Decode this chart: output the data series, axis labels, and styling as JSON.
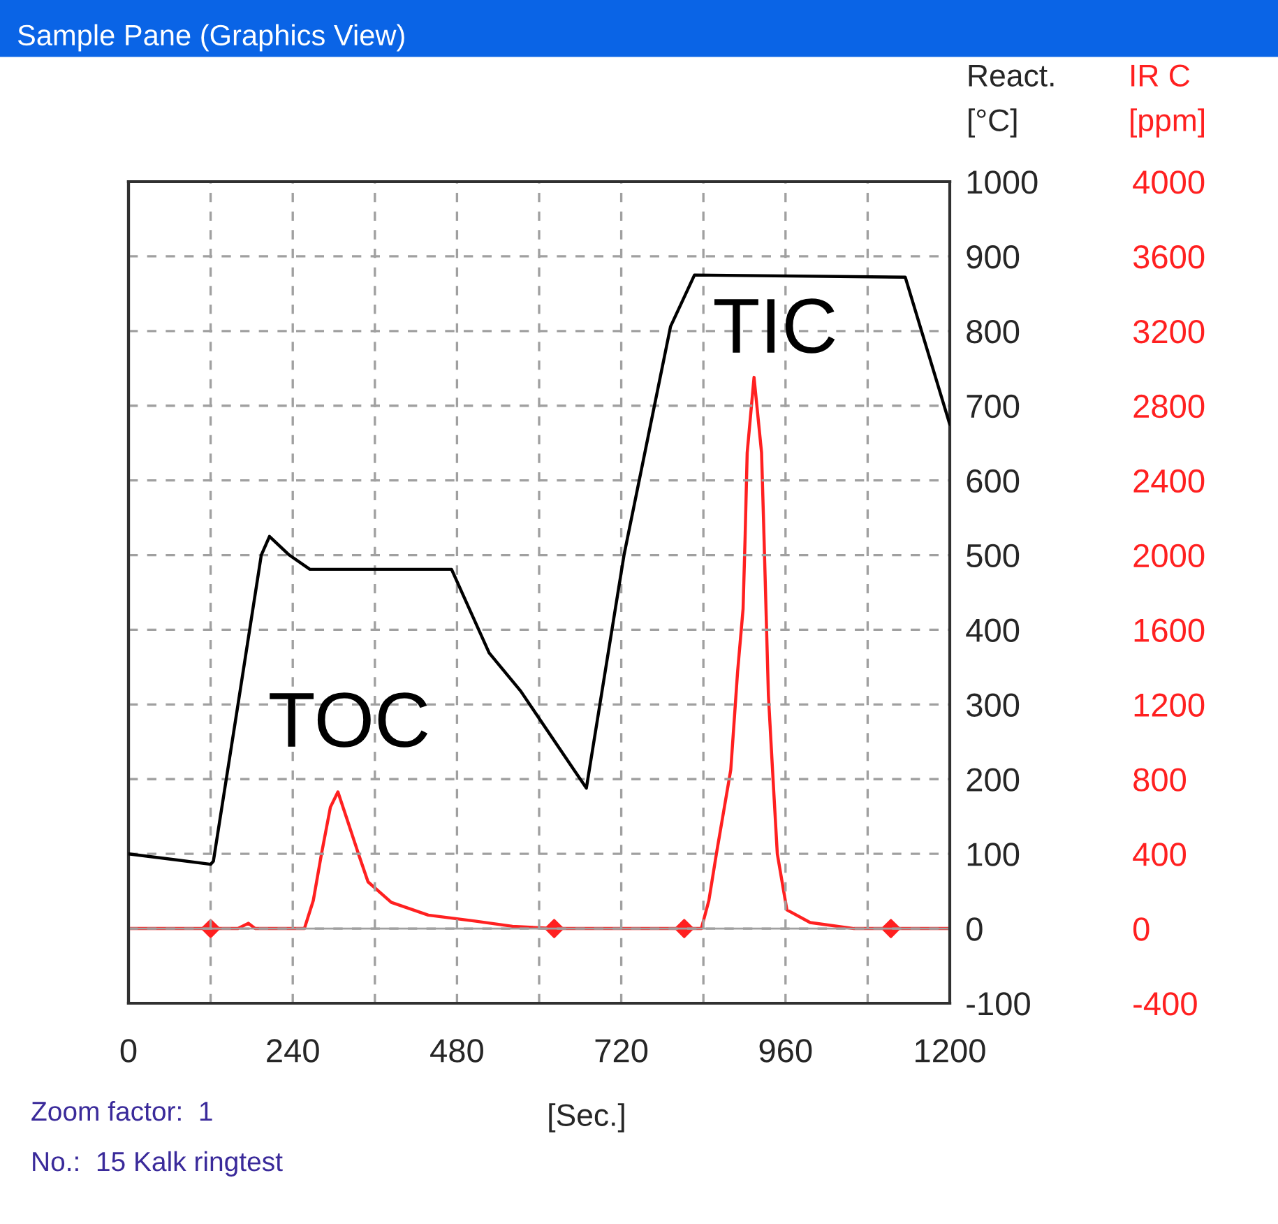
{
  "chart_data": {
    "type": "line",
    "title": "Sample Pane (Graphics View)",
    "xlabel": "[Sec.]",
    "ylabel": "React.\n[°C]",
    "y2label": "IR C\n[ppm]",
    "xlim": [
      0,
      1200
    ],
    "xticks": [
      0,
      {
        "value": 120,
        "label": null
      },
      240,
      {
        "value": 360,
        "label": null
      },
      480,
      {
        "value": 600,
        "label": null
      },
      720,
      {
        "value": 840,
        "label": null
      },
      960,
      {
        "value": 1080,
        "label": null
      },
      1200
    ],
    "ylim": [
      -100,
      1000
    ],
    "yticks": [
      -100,
      0,
      100,
      200,
      300,
      400,
      500,
      600,
      700,
      800,
      900,
      1000
    ],
    "y2lim": [
      -400,
      4000
    ],
    "y2ticks": [
      -400,
      0,
      400,
      800,
      1200,
      1600,
      2000,
      2400,
      2800,
      3200,
      3600,
      4000
    ],
    "grid": true,
    "legend": false,
    "line_style": "solid",
    "ref_lines": [
      {
        "axis": "y",
        "value": 0,
        "color": "#a0a0a0"
      }
    ],
    "series": [
      {
        "color": "#000000",
        "x": [
          0,
          120,
          124,
          160,
          194,
          206,
          235,
          265,
          472,
          527,
          573,
          649,
          669,
          724,
          792,
          827,
          1135,
          1200
        ],
        "values": [
          100,
          86,
          90,
          300,
          500,
          525,
          500,
          481,
          481,
          369,
          318,
          215,
          188,
          500,
          806,
          875,
          872,
          675
        ]
      },
      {
        "color": "#ff2020",
        "axis": "y2",
        "x": [
          0,
          160,
          175,
          185,
          257,
          270,
          282,
          295,
          306,
          318,
          336,
          350,
          384,
          438,
          506,
          561,
          620,
          837,
          848,
          859,
          880,
          890,
          898,
          901,
          904,
          914,
          925,
          928,
          935,
          941,
          948,
          962,
          996,
          1060,
          1200
        ],
        "values": [
          0,
          0,
          28,
          0,
          0,
          150,
          400,
          650,
          732,
          600,
          400,
          250,
          140,
          72,
          40,
          12,
          0,
          0,
          150,
          400,
          850,
          1376,
          1712,
          2100,
          2548,
          2952,
          2548,
          2172,
          1250,
          850,
          400,
          100,
          32,
          0,
          0
        ]
      },
      {
        "type": "scatter",
        "color": "#ff2020",
        "axis": "y2",
        "marker": "diamond",
        "x": [
          120,
          622,
          812,
          1114
        ],
        "values": [
          0,
          0,
          0,
          0
        ]
      }
    ],
    "annotations": [
      "TOC",
      "TIC",
      "Zoom factor:  1",
      "No.:  15 Kalk ringtest"
    ]
  }
}
